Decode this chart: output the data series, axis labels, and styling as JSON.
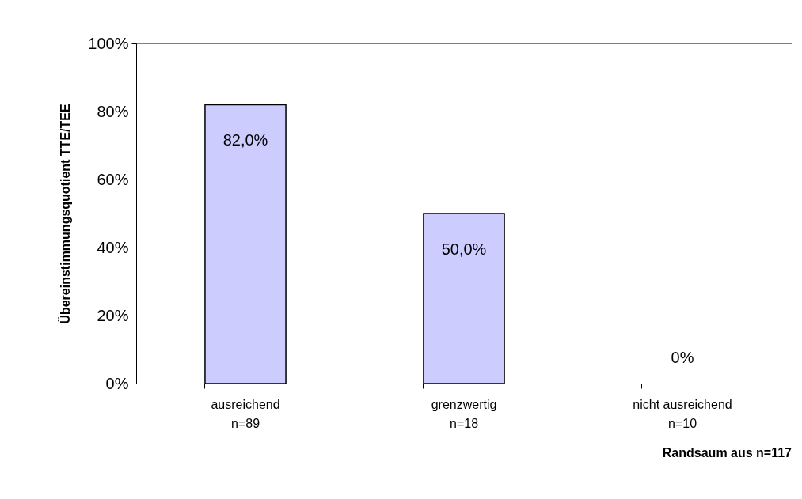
{
  "chart_data": {
    "type": "bar",
    "ylabel": "Übereinstimmungsquotient TTE/TEE",
    "categories": [
      "ausreichend\nn=89",
      "grenzwertig\nn=18",
      "nicht ausreichend\nn=10"
    ],
    "values": [
      82,
      50,
      0
    ],
    "value_labels": [
      "82,0%",
      "50,0%",
      "0%"
    ],
    "color": "#ccccff",
    "ylim": [
      0,
      100
    ],
    "yticks": [
      {
        "value": 0,
        "label": "0%"
      },
      {
        "value": 20,
        "label": "20%"
      },
      {
        "value": 40,
        "label": "40%"
      },
      {
        "value": 60,
        "label": "60%"
      },
      {
        "value": 80,
        "label": "80%"
      },
      {
        "value": 100,
        "label": "100%"
      }
    ],
    "annotations": [
      "Randsaum aus n=117"
    ]
  }
}
